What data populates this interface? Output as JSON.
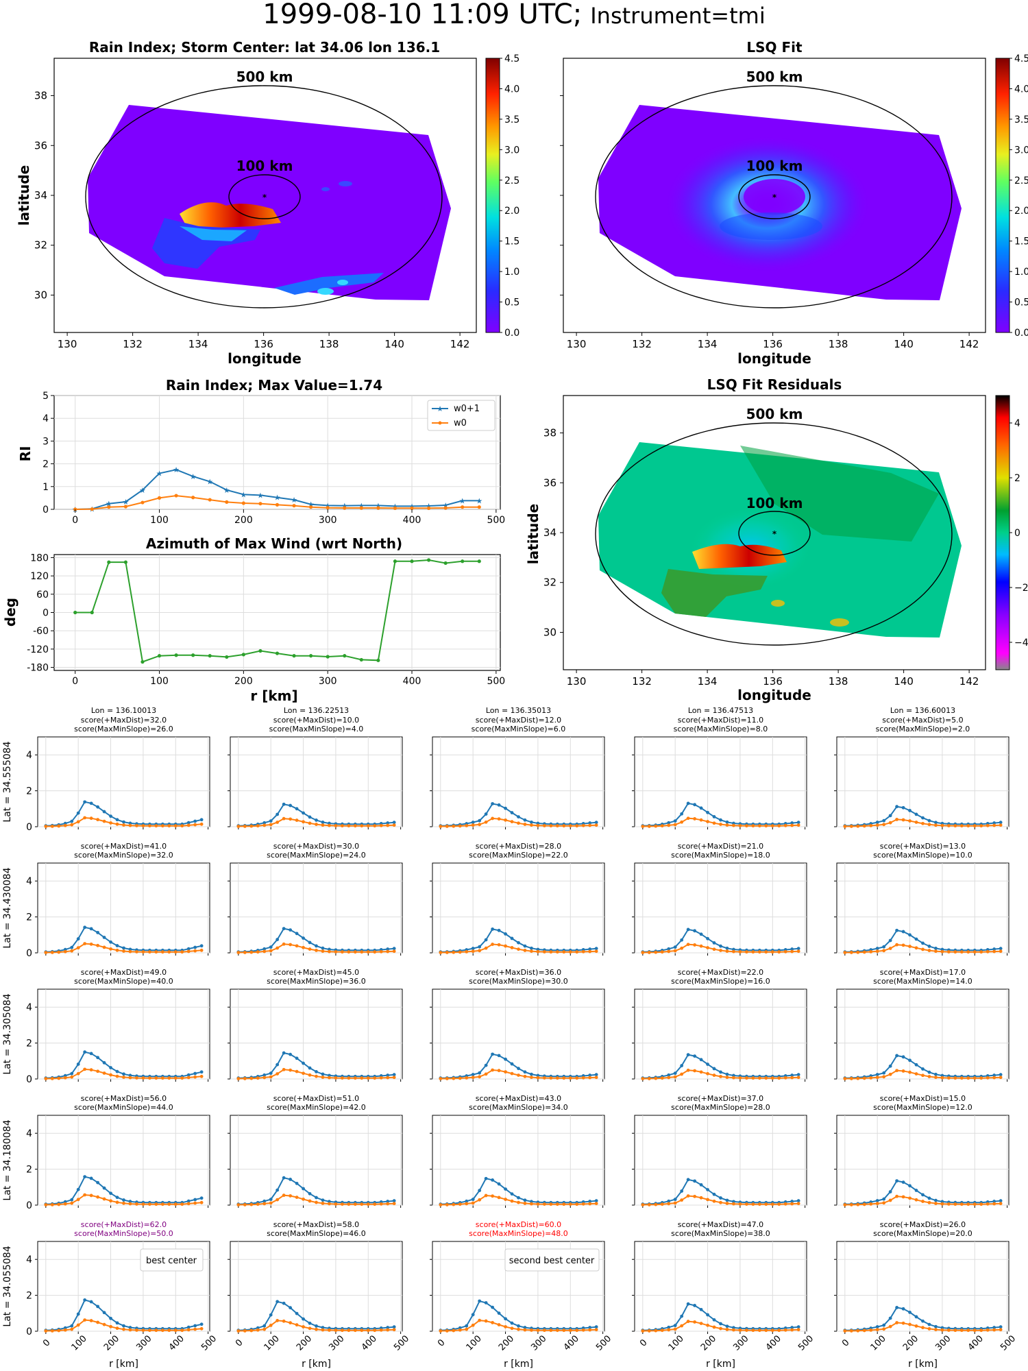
{
  "title": "1999-08-10 11:09 UTC;",
  "title_instrument": "Instrument=tmi",
  "colors": {
    "w0p1": "#1f77b4",
    "w0": "#ff7f0e",
    "azimuth": "#2ca02c",
    "best": "#800080",
    "second": "#ff0000",
    "grid": "#dddddd"
  },
  "chart_data": [
    {
      "id": "rain_index_map",
      "type": "heatmap",
      "title": "Rain Index; Storm Center: lat 34.06 lon 136.1",
      "xlabel": "longitude",
      "ylabel": "latitude",
      "xticks": [
        130,
        132,
        134,
        136,
        138,
        140,
        142
      ],
      "yticks": [
        30,
        32,
        34,
        36,
        38
      ],
      "xlim": [
        129.6,
        142.5
      ],
      "ylim": [
        28.5,
        39.5
      ],
      "center": {
        "lon": 136.1,
        "lat": 34.06
      },
      "ring_labels": [
        "500 km",
        "100 km"
      ],
      "colorbar": {
        "ticks": [
          "0.0",
          "0.5",
          "1.0",
          "1.5",
          "2.0",
          "2.5",
          "3.0",
          "3.5",
          "4.0",
          "4.5"
        ],
        "range": [
          0,
          4.5
        ]
      }
    },
    {
      "id": "lsq_fit_map",
      "type": "heatmap",
      "title": "LSQ Fit",
      "xlabel": "longitude",
      "xticks": [
        130,
        132,
        134,
        136,
        138,
        140,
        142
      ],
      "xlim": [
        129.6,
        142.5
      ],
      "ylim": [
        28.5,
        39.5
      ],
      "center": {
        "lon": 136.1,
        "lat": 34.06
      },
      "ring_labels": [
        "500 km",
        "100 km"
      ],
      "colorbar": {
        "ticks": [
          "0.0",
          "0.5",
          "1.0",
          "1.5",
          "2.0",
          "2.5",
          "3.0",
          "3.5",
          "4.0",
          "4.5"
        ],
        "range": [
          0,
          4.5
        ]
      }
    },
    {
      "id": "rain_index_profile",
      "type": "line",
      "title": "Rain Index; Max Value=1.74",
      "ylabel": "RI",
      "xlim": [
        -25,
        505
      ],
      "ylim": [
        0,
        5
      ],
      "xticks": [
        0,
        100,
        200,
        300,
        400,
        500
      ],
      "yticks": [
        0,
        1,
        2,
        3,
        4,
        5
      ],
      "legend": "top-right",
      "x": [
        0,
        20,
        40,
        60,
        80,
        100,
        120,
        140,
        160,
        180,
        200,
        220,
        240,
        260,
        280,
        300,
        320,
        340,
        360,
        380,
        400,
        420,
        440,
        460,
        480
      ],
      "series": [
        {
          "name": "w0+1",
          "values": [
            0.0,
            0.02,
            0.25,
            0.33,
            0.85,
            1.58,
            1.74,
            1.45,
            1.22,
            0.85,
            0.65,
            0.62,
            0.52,
            0.42,
            0.22,
            0.17,
            0.16,
            0.17,
            0.17,
            0.14,
            0.14,
            0.15,
            0.18,
            0.38,
            0.38
          ]
        },
        {
          "name": "w0",
          "values": [
            0.0,
            0.01,
            0.1,
            0.12,
            0.3,
            0.5,
            0.6,
            0.52,
            0.42,
            0.32,
            0.27,
            0.25,
            0.2,
            0.16,
            0.1,
            0.07,
            0.06,
            0.06,
            0.06,
            0.05,
            0.05,
            0.05,
            0.06,
            0.1,
            0.1
          ]
        }
      ]
    },
    {
      "id": "azimuth_profile",
      "type": "line",
      "title": "Azimuth of Max Wind (wrt North)",
      "xlabel": "r [km]",
      "ylabel": "deg",
      "xlim": [
        -25,
        505
      ],
      "ylim": [
        -190,
        190
      ],
      "xticks": [
        0,
        100,
        200,
        300,
        400,
        500
      ],
      "yticks": [
        180,
        120,
        60,
        0,
        -60,
        -120,
        -180
      ],
      "x": [
        0,
        20,
        40,
        60,
        80,
        100,
        120,
        140,
        160,
        180,
        200,
        220,
        240,
        260,
        280,
        300,
        320,
        340,
        360,
        380,
        400,
        420,
        440,
        460,
        480
      ],
      "series": [
        {
          "values": [
            0,
            0,
            165,
            165,
            -162,
            -142,
            -140,
            -140,
            -142,
            -146,
            -138,
            -126,
            -134,
            -142,
            -142,
            -145,
            -142,
            -155,
            -157,
            168,
            168,
            172,
            162,
            168,
            168
          ]
        }
      ]
    },
    {
      "id": "lsq_residuals_map",
      "type": "heatmap",
      "title": "LSQ Fit Residuals",
      "xlabel": "longitude",
      "ylabel": "latitude",
      "xticks": [
        130,
        132,
        134,
        136,
        138,
        140,
        142
      ],
      "yticks": [
        30,
        32,
        34,
        36,
        38
      ],
      "xlim": [
        129.6,
        142.5
      ],
      "ylim": [
        28.5,
        39.5
      ],
      "center": {
        "lon": 136.1,
        "lat": 34.06
      },
      "ring_labels": [
        "500 km",
        "100 km"
      ],
      "colorbar": {
        "ticks": [
          "4",
          "2",
          "0",
          "−2",
          "−4"
        ],
        "range": [
          -5,
          5
        ]
      }
    },
    {
      "id": "center_grid",
      "type": "line",
      "xlabel": "r [km]",
      "xlim": [
        -25,
        505
      ],
      "ylim": [
        0,
        5
      ],
      "xticks": [
        0,
        100,
        200,
        300,
        400,
        500
      ],
      "yticks": [
        0,
        2,
        4
      ],
      "columns": [
        "Lon = 136.10013",
        "Lon = 136.22513",
        "Lon = 136.35013",
        "Lon = 136.47513",
        "Lon = 136.60013"
      ],
      "rows": [
        "Lat = 34.555084",
        "Lat = 34.430084",
        "Lat = 34.305084",
        "Lat = 34.180084",
        "Lat = 34.055084"
      ],
      "scores": [
        [
          [
            "score(+MaxDist)=32.0",
            "score(MaxMinSlope)=26.0"
          ],
          [
            "score(+MaxDist)=10.0",
            "score(MaxMinSlope)=4.0"
          ],
          [
            "score(+MaxDist)=12.0",
            "score(MaxMinSlope)=6.0"
          ],
          [
            "score(+MaxDist)=11.0",
            "score(MaxMinSlope)=8.0"
          ],
          [
            "score(+MaxDist)=5.0",
            "score(MaxMinSlope)=2.0"
          ]
        ],
        [
          [
            "score(+MaxDist)=41.0",
            "score(MaxMinSlope)=32.0"
          ],
          [
            "score(+MaxDist)=30.0",
            "score(MaxMinSlope)=24.0"
          ],
          [
            "score(+MaxDist)=28.0",
            "score(MaxMinSlope)=22.0"
          ],
          [
            "score(+MaxDist)=21.0",
            "score(MaxMinSlope)=18.0"
          ],
          [
            "score(+MaxDist)=13.0",
            "score(MaxMinSlope)=10.0"
          ]
        ],
        [
          [
            "score(+MaxDist)=49.0",
            "score(MaxMinSlope)=40.0"
          ],
          [
            "score(+MaxDist)=45.0",
            "score(MaxMinSlope)=36.0"
          ],
          [
            "score(+MaxDist)=36.0",
            "score(MaxMinSlope)=30.0"
          ],
          [
            "score(+MaxDist)=22.0",
            "score(MaxMinSlope)=16.0"
          ],
          [
            "score(+MaxDist)=17.0",
            "score(MaxMinSlope)=14.0"
          ]
        ],
        [
          [
            "score(+MaxDist)=56.0",
            "score(MaxMinSlope)=44.0"
          ],
          [
            "score(+MaxDist)=51.0",
            "score(MaxMinSlope)=42.0"
          ],
          [
            "score(+MaxDist)=43.0",
            "score(MaxMinSlope)=34.0"
          ],
          [
            "score(+MaxDist)=37.0",
            "score(MaxMinSlope)=28.0"
          ],
          [
            "score(+MaxDist)=15.0",
            "score(MaxMinSlope)=12.0"
          ]
        ],
        [
          [
            "score(+MaxDist)=62.0",
            "score(MaxMinSlope)=50.0"
          ],
          [
            "score(+MaxDist)=58.0",
            "score(MaxMinSlope)=46.0"
          ],
          [
            "score(+MaxDist)=60.0",
            "score(MaxMinSlope)=48.0"
          ],
          [
            "score(+MaxDist)=47.0",
            "score(MaxMinSlope)=38.0"
          ],
          [
            "score(+MaxDist)=26.0",
            "score(MaxMinSlope)=20.0"
          ]
        ]
      ],
      "annotations": {
        "best": "best center",
        "second": "second best center"
      },
      "best_cell": [
        4,
        0
      ],
      "second_cell": [
        4,
        2
      ],
      "peaks": [
        [
          [
            120,
            1.38
          ],
          [
            140,
            1.25
          ],
          [
            160,
            1.28
          ],
          [
            140,
            1.3
          ],
          [
            160,
            1.12
          ]
        ],
        [
          [
            120,
            1.42
          ],
          [
            140,
            1.35
          ],
          [
            160,
            1.32
          ],
          [
            140,
            1.3
          ],
          [
            160,
            1.25
          ]
        ],
        [
          [
            120,
            1.5
          ],
          [
            140,
            1.45
          ],
          [
            160,
            1.38
          ],
          [
            140,
            1.35
          ],
          [
            160,
            1.3
          ]
        ],
        [
          [
            120,
            1.58
          ],
          [
            140,
            1.52
          ],
          [
            140,
            1.48
          ],
          [
            140,
            1.42
          ],
          [
            160,
            1.35
          ]
        ],
        [
          [
            120,
            1.74
          ],
          [
            120,
            1.65
          ],
          [
            120,
            1.68
          ],
          [
            140,
            1.52
          ],
          [
            160,
            1.32
          ]
        ]
      ]
    }
  ]
}
